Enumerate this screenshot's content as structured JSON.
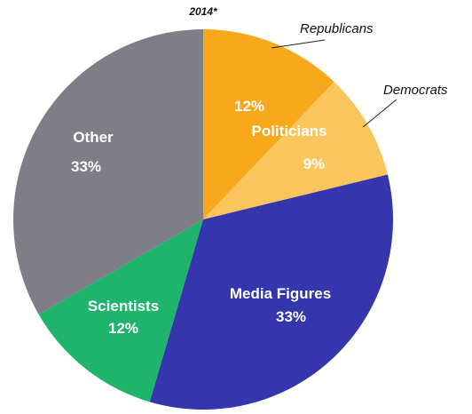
{
  "chart_data": {
    "type": "pie",
    "title": "2014*",
    "slices": [
      {
        "label": "Politicians",
        "value": 12,
        "value_label": "12%",
        "sublabel": "Republicans",
        "color": "#f7a81b"
      },
      {
        "label": "Politicians",
        "value": 9,
        "value_label": "9%",
        "sublabel": "Democrats",
        "color": "#fbc55d"
      },
      {
        "label": "Media Figures",
        "value": 33,
        "value_label": "33%",
        "color": "#3535ad"
      },
      {
        "label": "Scientists",
        "value": 12,
        "value_label": "12%",
        "color": "#1fb46c"
      },
      {
        "label": "Other",
        "value": 33,
        "value_label": "33%",
        "color": "#7f7e86"
      }
    ],
    "group_label": "Politicians",
    "start_angle_deg": 0,
    "direction": "clockwise"
  }
}
